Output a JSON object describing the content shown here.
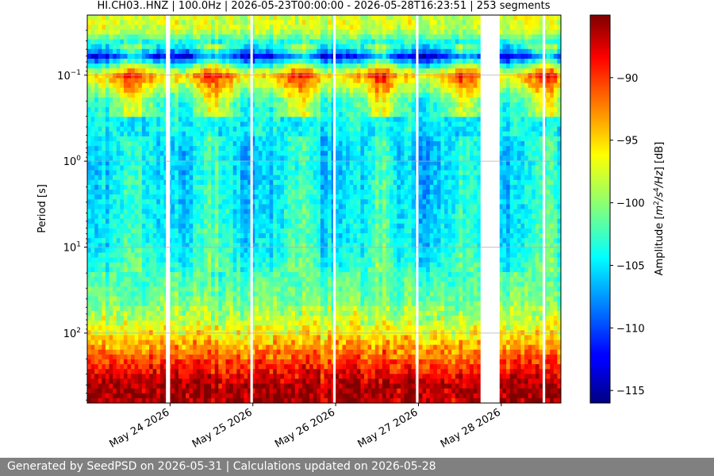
{
  "chart_data": {
    "type": "heatmap",
    "title": "HI.CH03..HNZ | 100.0Hz | 2026-05-23T00:00:00 - 2026-05-28T16:23:51 | 253 segments",
    "xlabel": "",
    "ylabel": "Period [s]",
    "colorbar_label": "Amplitude [m²/s⁴/Hz] [dB]",
    "colorbar_label_parts": {
      "prefix": "Amplitude [",
      "m": "m",
      "exp2": "2",
      "s": "/s",
      "exp4": "4",
      "hz": "/Hz",
      "suffix": "] [dB]"
    },
    "colormap": "jet",
    "color_range_db": [
      -116,
      -85
    ],
    "colorbar_ticks": [
      "−90",
      "−95",
      "−100",
      "−105",
      "−110",
      "−115"
    ],
    "colorbar_tick_values": [
      -90,
      -95,
      -100,
      -105,
      -110,
      -115
    ],
    "y_scale": "log (inverted)",
    "ylim_seconds": [
      0.02,
      650
    ],
    "y_ticks": [
      {
        "base": "10",
        "exp": "−1",
        "value": 0.1
      },
      {
        "base": "10",
        "exp": "0",
        "value": 1
      },
      {
        "base": "10",
        "exp": "1",
        "value": 10
      },
      {
        "base": "10",
        "exp": "2",
        "value": 100
      }
    ],
    "x_ticks": [
      {
        "label": "May 24 2026",
        "day": 24
      },
      {
        "label": "May 25 2026",
        "day": 25
      },
      {
        "label": "May 26 2026",
        "day": 26
      },
      {
        "label": "May 27 2026",
        "day": 27
      },
      {
        "label": "May 28 2026",
        "day": 28
      }
    ],
    "xlim_days": [
      23.0,
      28.72
    ],
    "data_gaps_days": [
      [
        23.95,
        24.0
      ],
      [
        24.97,
        25.0
      ],
      [
        25.97,
        26.0
      ],
      [
        26.97,
        27.0
      ],
      [
        27.75,
        27.98
      ],
      [
        28.5,
        28.53
      ]
    ],
    "grid": "horizontal",
    "approx_profile": [
      {
        "period_s": 0.03,
        "level_db": -98
      },
      {
        "period_s": 0.05,
        "level_db": -107
      },
      {
        "period_s": 0.06,
        "level_db": -113
      },
      {
        "period_s": 0.1,
        "level_db": -96
      },
      {
        "period_s": 0.2,
        "level_db": -104
      },
      {
        "period_s": 1.0,
        "level_db": -105
      },
      {
        "period_s": 10,
        "level_db": -104
      },
      {
        "period_s": 60,
        "level_db": -100
      },
      {
        "period_s": 100,
        "level_db": -97
      },
      {
        "period_s": 200,
        "level_db": -92
      },
      {
        "period_s": 400,
        "level_db": -87
      }
    ]
  },
  "footer": {
    "text": "Generated by SeedPSD on 2026-05-31 | Calculations updated on 2026-05-28"
  }
}
